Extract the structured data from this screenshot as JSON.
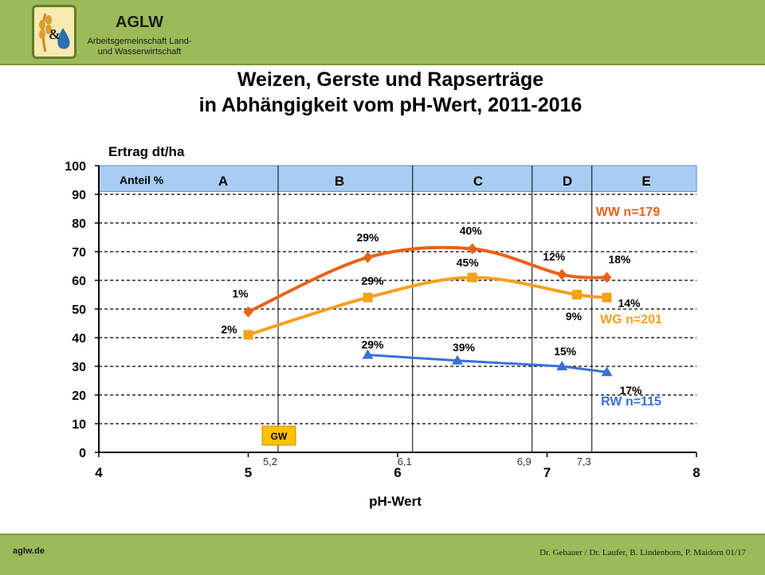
{
  "header": {
    "brand_name": "AGLW",
    "brand_sub_1": "Arbeitsgemeinschaft Land-",
    "brand_sub_2": "und Wasserwirtschaft",
    "logo_text": "&"
  },
  "footer": {
    "left": "aglw.de",
    "right": "Dr. Gebauer / Dr. Laufer, B. Lindenborn, P. Maidorn 01/17"
  },
  "chart_data": {
    "type": "line",
    "title_line1": "Weizen, Gerste und Rapserträge",
    "title_line2": "in Abhängigkeit vom pH-Wert, 2011-2016",
    "ylabel": "Ertrag dt/ha",
    "xlabel": "pH-Wert",
    "xlim": [
      4,
      8
    ],
    "ylim": [
      0,
      100
    ],
    "x_ticks": [
      "4",
      "5",
      "6",
      "7",
      "8"
    ],
    "y_ticks": [
      "0",
      "10",
      "20",
      "30",
      "40",
      "50",
      "60",
      "70",
      "80",
      "90",
      "100"
    ],
    "grid": "horizontal-dashed",
    "class_band": {
      "label": "Anteil %",
      "classes": [
        "A",
        "B",
        "C",
        "D",
        "E"
      ],
      "boundaries": [
        5.2,
        6.1,
        6.9,
        7.3
      ]
    },
    "boundary_labels": [
      "5,2",
      "6,1",
      "6,9",
      "7,3"
    ],
    "annotation_gw": "GW",
    "series": [
      {
        "name": "WW n=179",
        "color": "#e8621a",
        "marker": "diamond",
        "x": [
          5.0,
          5.8,
          6.5,
          7.1,
          7.4
        ],
        "y": [
          49,
          68,
          71,
          62,
          61
        ],
        "labels": [
          "1%",
          "29%",
          "40%",
          "12%",
          "18%"
        ]
      },
      {
        "name": "WG n=201",
        "color": "#f5a01e",
        "marker": "square",
        "x": [
          5.0,
          5.8,
          6.5,
          7.2,
          7.4
        ],
        "y": [
          41,
          54,
          61,
          55,
          54
        ],
        "labels": [
          "2%",
          "29%",
          "45%",
          "9%",
          "14%"
        ]
      },
      {
        "name": "RW n=115",
        "color": "#3a6fd8",
        "marker": "triangle",
        "x": [
          5.8,
          6.4,
          7.1,
          7.4
        ],
        "y": [
          34,
          32,
          30,
          28
        ],
        "labels": [
          "29%",
          "39%",
          "15%",
          "17%"
        ]
      }
    ]
  }
}
